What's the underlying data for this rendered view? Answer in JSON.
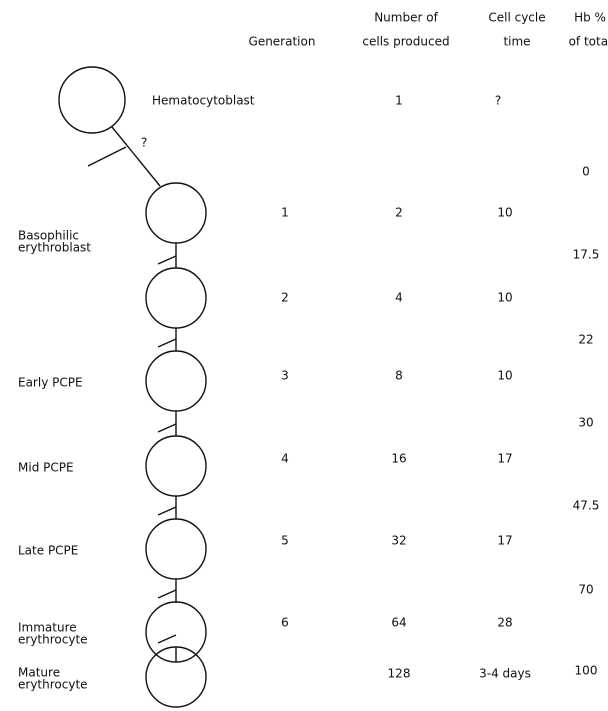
{
  "headers": {
    "generation": [
      "Generation"
    ],
    "cells_produced": [
      "Number of",
      "cells produced"
    ],
    "cycle_time": [
      "Cell cycle",
      "time"
    ],
    "hb": [
      "Hb %",
      "of total"
    ]
  },
  "stem": {
    "label": "Hematocytoblast",
    "cells_produced": "1",
    "cycle_time": "?",
    "link_mark": "?"
  },
  "rows": [
    {
      "label": [
        "Basophilic",
        "erythroblast"
      ],
      "generation": "1",
      "cells_produced": "2",
      "cycle_time": "10"
    },
    {
      "label": [],
      "generation": "2",
      "cells_produced": "4",
      "cycle_time": "10"
    },
    {
      "label": [
        "Early PCPE"
      ],
      "generation": "3",
      "cells_produced": "8",
      "cycle_time": "10"
    },
    {
      "label": [
        "Mid PCPE"
      ],
      "generation": "4",
      "cells_produced": "16",
      "cycle_time": "17"
    },
    {
      "label": [
        "Late PCPE"
      ],
      "generation": "5",
      "cells_produced": "32",
      "cycle_time": "17"
    },
    {
      "label": [
        "Immature",
        "erythrocyte"
      ],
      "generation": "6",
      "cells_produced": "64",
      "cycle_time": "28"
    },
    {
      "label": [
        "Mature",
        "erythrocyte"
      ],
      "generation": null,
      "cells_produced": "128",
      "cycle_time": "3-4 days"
    }
  ],
  "hb_percent": [
    "0",
    "17.5",
    "22",
    "30",
    "47.5",
    "70",
    "100"
  ]
}
